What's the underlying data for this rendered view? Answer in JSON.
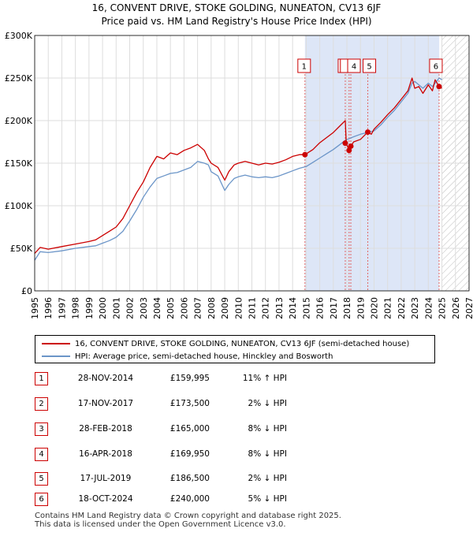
{
  "title": {
    "line1": "16, CONVENT DRIVE, STOKE GOLDING, NUNEATON, CV13 6JF",
    "line2": "Price paid vs. HM Land Registry's House Price Index (HPI)"
  },
  "colors": {
    "price_line": "#cc0000",
    "hpi_line": "#6b95c8",
    "shade": "#dde6f7",
    "border": "#cc0000"
  },
  "chart_data": {
    "type": "line",
    "xlim": [
      1995,
      2027
    ],
    "ylim": [
      0,
      300000
    ],
    "x_ticks": [
      "1995",
      "1996",
      "1997",
      "1998",
      "1999",
      "2000",
      "2001",
      "2002",
      "2003",
      "2004",
      "2005",
      "2006",
      "2007",
      "2008",
      "2009",
      "2010",
      "2011",
      "2012",
      "2013",
      "2014",
      "2015",
      "2016",
      "2017",
      "2018",
      "2019",
      "2020",
      "2021",
      "2022",
      "2023",
      "2024",
      "2025",
      "2026",
      "2027"
    ],
    "y_ticks": [
      {
        "value": 0,
        "label": "£0"
      },
      {
        "value": 50000,
        "label": "£50K"
      },
      {
        "value": 100000,
        "label": "£100K"
      },
      {
        "value": 150000,
        "label": "£150K"
      },
      {
        "value": 200000,
        "label": "£200K"
      },
      {
        "value": 250000,
        "label": "£250K"
      },
      {
        "value": 300000,
        "label": "£300K"
      }
    ],
    "shaded_range": [
      2014.91,
      2024.8
    ],
    "hatched_from": 2025.0,
    "series": [
      {
        "name": "16, CONVENT DRIVE, STOKE GOLDING, NUNEATON, CV13 6JF (semi-detached house)",
        "color": "#cc0000",
        "x": [
          1995.0,
          1995.4,
          1996.0,
          1997.0,
          1998.0,
          1999.0,
          1999.5,
          2000.0,
          2000.5,
          2001.0,
          2001.5,
          2002.0,
          2002.5,
          2003.0,
          2003.5,
          2004.0,
          2004.5,
          2005.0,
          2005.5,
          2006.0,
          2006.5,
          2007.0,
          2007.5,
          2007.8,
          2008.0,
          2008.5,
          2009.0,
          2009.3,
          2009.7,
          2010.0,
          2010.5,
          2011.0,
          2011.5,
          2012.0,
          2012.5,
          2013.0,
          2013.5,
          2014.0,
          2014.5,
          2014.91,
          2015.5,
          2016.0,
          2016.5,
          2017.0,
          2017.5,
          2017.88,
          2017.95,
          2018.16,
          2018.29,
          2018.5,
          2019.0,
          2019.54,
          2019.8,
          2020.0,
          2020.5,
          2021.0,
          2021.5,
          2022.0,
          2022.5,
          2022.8,
          2023.0,
          2023.3,
          2023.6,
          2024.0,
          2024.3,
          2024.5,
          2024.79,
          2025.0
        ],
        "y": [
          44000,
          51000,
          49000,
          52000,
          55000,
          58000,
          60000,
          65000,
          70000,
          75000,
          85000,
          100000,
          115000,
          128000,
          145000,
          158000,
          155000,
          162000,
          160000,
          165000,
          168000,
          172000,
          165000,
          155000,
          150000,
          145000,
          130000,
          140000,
          148000,
          150000,
          152000,
          150000,
          148000,
          150000,
          149000,
          151000,
          154000,
          158000,
          160000,
          159995,
          166000,
          174000,
          180000,
          186000,
          194000,
          200000,
          173500,
          165000,
          169950,
          175000,
          178000,
          186500,
          184000,
          190000,
          198000,
          207000,
          215000,
          225000,
          235000,
          250000,
          238000,
          240000,
          232000,
          242000,
          235000,
          248000,
          240000,
          238000
        ]
      },
      {
        "name": "HPI: Average price, semi-detached house, Hinckley and Bosworth",
        "color": "#6b95c8",
        "x": [
          1995.0,
          1995.4,
          1996.0,
          1997.0,
          1998.0,
          1999.0,
          1999.5,
          2000.0,
          2000.5,
          2001.0,
          2001.5,
          2002.0,
          2002.5,
          2003.0,
          2003.5,
          2004.0,
          2004.5,
          2005.0,
          2005.5,
          2006.0,
          2006.5,
          2007.0,
          2007.5,
          2007.8,
          2008.0,
          2008.5,
          2009.0,
          2009.3,
          2009.7,
          2010.0,
          2010.5,
          2011.0,
          2011.5,
          2012.0,
          2012.5,
          2013.0,
          2013.5,
          2014.0,
          2014.5,
          2015.0,
          2015.5,
          2016.0,
          2016.5,
          2017.0,
          2017.5,
          2017.9,
          2018.2,
          2018.5,
          2019.0,
          2019.5,
          2020.0,
          2020.5,
          2021.0,
          2021.5,
          2022.0,
          2022.5,
          2022.8,
          2023.0,
          2023.3,
          2023.6,
          2024.0,
          2024.3,
          2024.6,
          2024.8,
          2025.0
        ],
        "y": [
          36000,
          46000,
          45000,
          47000,
          50000,
          52000,
          53000,
          56000,
          59000,
          63000,
          70000,
          82000,
          95000,
          110000,
          122000,
          132000,
          135000,
          138000,
          139000,
          142000,
          145000,
          152000,
          150000,
          148000,
          140000,
          135000,
          118000,
          125000,
          132000,
          134000,
          136000,
          134000,
          133000,
          134000,
          133000,
          135000,
          138000,
          141000,
          144000,
          146000,
          151000,
          156000,
          161000,
          166000,
          172000,
          177000,
          179000,
          181000,
          184000,
          186000,
          188000,
          195000,
          204000,
          212000,
          222000,
          232000,
          244000,
          246000,
          242000,
          238000,
          244000,
          240000,
          246000,
          250000,
          248000
        ]
      }
    ],
    "markers": [
      {
        "id": "1",
        "x": 2014.91,
        "y": 159995
      },
      {
        "id": "2",
        "x": 2017.88,
        "y": 173500
      },
      {
        "id": "3",
        "x": 2018.16,
        "y": 165000
      },
      {
        "id": "4",
        "x": 2018.29,
        "y": 169950
      },
      {
        "id": "5",
        "x": 2019.54,
        "y": 186500
      },
      {
        "id": "6",
        "x": 2024.79,
        "y": 240000
      }
    ]
  },
  "legend": {
    "price_label": "16, CONVENT DRIVE, STOKE GOLDING, NUNEATON, CV13 6JF (semi-detached house)",
    "hpi_label": "HPI: Average price, semi-detached house, Hinckley and Bosworth"
  },
  "sales": [
    {
      "num": "1",
      "date": "28-NOV-2014",
      "price": "£159,995",
      "hpi": "11% ↑ HPI"
    },
    {
      "num": "2",
      "date": "17-NOV-2017",
      "price": "£173,500",
      "hpi": "2% ↓ HPI"
    },
    {
      "num": "3",
      "date": "28-FEB-2018",
      "price": "£165,000",
      "hpi": "8% ↓ HPI"
    },
    {
      "num": "4",
      "date": "16-APR-2018",
      "price": "£169,950",
      "hpi": "8% ↓ HPI"
    },
    {
      "num": "5",
      "date": "17-JUL-2019",
      "price": "£186,500",
      "hpi": "2% ↓ HPI"
    },
    {
      "num": "6",
      "date": "18-OCT-2024",
      "price": "£240,000",
      "hpi": "5% ↓ HPI"
    }
  ],
  "footer": {
    "line1": "Contains HM Land Registry data © Crown copyright and database right 2025.",
    "line2": "This data is licensed under the Open Government Licence v3.0."
  }
}
